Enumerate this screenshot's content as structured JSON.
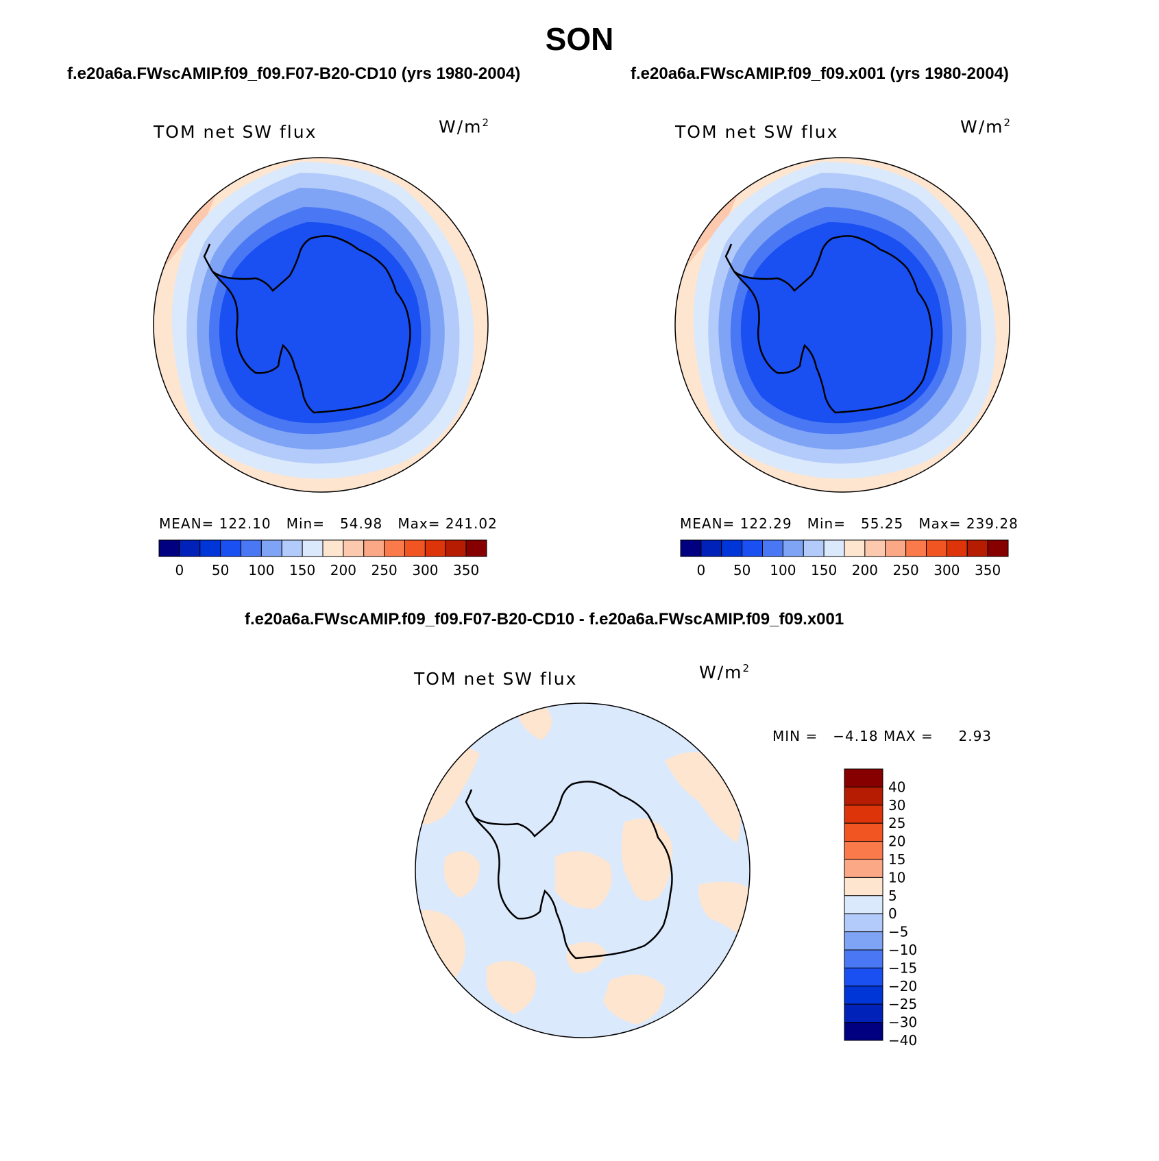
{
  "season": "SON",
  "panels": [
    {
      "case_title": "f.e20a6a.FWscAMIP.f09_f09.F07-B20-CD10 (yrs 1980-2004)",
      "variable": "TOM net SW flux",
      "units_base": "W/m",
      "units_exp": "2",
      "stats": "MEAN= 122.10   Min=   54.98   Max= 241.02",
      "colorbar_labels": [
        "0",
        "50",
        "100",
        "150",
        "200",
        "250",
        "300",
        "350"
      ]
    },
    {
      "case_title": "f.e20a6a.FWscAMIP.f09_f09.x001 (yrs 1980-2004)",
      "variable": "TOM net SW flux",
      "units_base": "W/m",
      "units_exp": "2",
      "stats": "MEAN= 122.29   Min=   55.25   Max= 239.28",
      "colorbar_labels": [
        "0",
        "50",
        "100",
        "150",
        "200",
        "250",
        "300",
        "350"
      ]
    }
  ],
  "difference": {
    "title": "f.e20a6a.FWscAMIP.f09_f09.F07-B20-CD10 - f.e20a6a.FWscAMIP.f09_f09.x001",
    "variable": "TOM net SW flux",
    "units_base": "W/m",
    "units_exp": "2",
    "stats": "MIN =   −4.18 MAX =     2.93",
    "colorbar_labels": [
      "40",
      "30",
      "25",
      "20",
      "15",
      "10",
      "5",
      "0",
      "−5",
      "−10",
      "−15",
      "−20",
      "−25",
      "−30",
      "−40"
    ]
  },
  "colors": {
    "scale": [
      "#000080",
      "#0022b8",
      "#0035d8",
      "#1a4ff2",
      "#4a78f4",
      "#7fa3f5",
      "#b3cbfa",
      "#dbe9fc",
      "#fde5d0",
      "#fcc9ae",
      "#fba887",
      "#fa7a4c",
      "#f15522",
      "#dd3409",
      "#b51c02",
      "#870000"
    ],
    "diff_scale": [
      "#870000",
      "#b51c02",
      "#dd3409",
      "#f15522",
      "#fa7a4c",
      "#fba887",
      "#fde5d0",
      "#dbe9fc",
      "#b3cbfa",
      "#7fa3f5",
      "#4a78f4",
      "#1a4ff2",
      "#0035d8",
      "#0022b8",
      "#000080"
    ]
  }
}
